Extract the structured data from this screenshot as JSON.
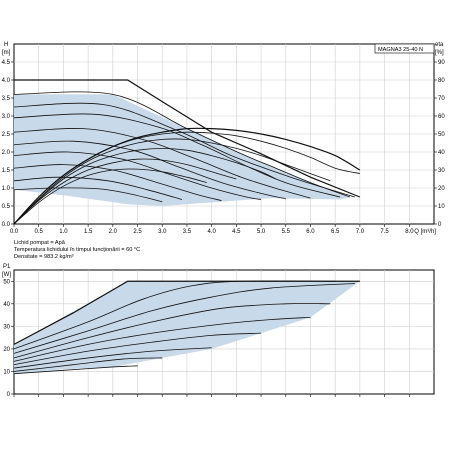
{
  "model_label": "MAGNA3 25-40 N",
  "fluid_notes": [
    "Lichid pompat = Apă",
    "Temperatura lichidului în timpul funcționării = 60 °C",
    "Densitate = 983.2 kg/m³"
  ],
  "colors": {
    "region": "#c8d9ea",
    "line": "#111111",
    "grid": "#cfcfcf"
  },
  "chart_data": [
    {
      "type": "line",
      "role": "head-flow",
      "xlabel": "Q [m³/h]",
      "ylabel_line1": "H",
      "ylabel_line2": "[m]",
      "y2label_line1": "eta",
      "y2label_line2": "[%]",
      "xlim": [
        0,
        8.5
      ],
      "ylim": [
        0,
        5
      ],
      "y2lim": [
        0,
        100
      ],
      "x_ticks": [
        "0.0",
        "0.5",
        "1.0",
        "1.5",
        "2.0",
        "2.5",
        "3.0",
        "3.5",
        "4.0",
        "4.5",
        "5.0",
        "5.5",
        "6.0",
        "6.5",
        "7.0",
        "7.5",
        "8.0"
      ],
      "x_tick_values": [
        0,
        0.5,
        1,
        1.5,
        2,
        2.5,
        3,
        3.5,
        4,
        4.5,
        5,
        5.5,
        6,
        6.5,
        7,
        7.5,
        8
      ],
      "x_unit_label": "Q [m³/h]",
      "y_ticks": [
        "0.0",
        "0.5",
        "1.0",
        "1.5",
        "2.0",
        "2.5",
        "3.0",
        "3.5",
        "4.0",
        "4.5"
      ],
      "y_tick_values": [
        0,
        0.5,
        1,
        1.5,
        2,
        2.5,
        3,
        3.5,
        4,
        4.5
      ],
      "y2_ticks": [
        "0",
        "10",
        "20",
        "30",
        "40",
        "50",
        "60",
        "70",
        "80",
        "90"
      ],
      "y2_tick_values": [
        0,
        10,
        20,
        30,
        40,
        50,
        60,
        70,
        80,
        90
      ],
      "grid": true,
      "max_curve": [
        [
          0,
          4.0
        ],
        [
          2.3,
          4.0
        ],
        [
          3.0,
          3.4
        ],
        [
          4.0,
          2.55
        ],
        [
          5.0,
          1.95
        ],
        [
          6.0,
          1.3
        ],
        [
          7.0,
          0.75
        ]
      ],
      "operating_region": [
        [
          0,
          3.6
        ],
        [
          2.0,
          3.6
        ],
        [
          3.5,
          2.65
        ],
        [
          4.6,
          1.95
        ],
        [
          5.3,
          1.55
        ],
        [
          6.0,
          1.15
        ],
        [
          6.8,
          0.75
        ],
        [
          6.6,
          0.68
        ],
        [
          5.2,
          0.72
        ],
        [
          4.0,
          0.6
        ],
        [
          3.0,
          0.5
        ],
        [
          2.3,
          0.55
        ],
        [
          1.0,
          0.8
        ],
        [
          0,
          0.95
        ]
      ],
      "pressure_curves": [
        [
          [
            0,
            3.6
          ],
          [
            2.0,
            3.6
          ],
          [
            3.5,
            2.65
          ],
          [
            4.6,
            1.95
          ],
          [
            5.3,
            1.55
          ],
          [
            6.0,
            1.15
          ],
          [
            6.8,
            0.75
          ]
        ],
        [
          [
            0,
            3.25
          ],
          [
            1.8,
            3.32
          ],
          [
            3.3,
            2.6
          ],
          [
            4.4,
            1.9
          ],
          [
            5.6,
            1.3
          ],
          [
            6.9,
            0.75
          ]
        ],
        [
          [
            0,
            2.95
          ],
          [
            1.6,
            3.05
          ],
          [
            2.9,
            2.7
          ],
          [
            3.8,
            2.2
          ],
          [
            4.8,
            1.55
          ],
          [
            5.6,
            1.1
          ],
          [
            6.6,
            0.75
          ]
        ],
        [
          [
            0,
            2.55
          ],
          [
            1.4,
            2.65
          ],
          [
            2.6,
            2.35
          ],
          [
            3.6,
            1.85
          ],
          [
            4.6,
            1.3
          ],
          [
            5.4,
            0.95
          ],
          [
            6.0,
            0.72
          ]
        ],
        [
          [
            0,
            2.2
          ],
          [
            1.2,
            2.3
          ],
          [
            2.4,
            2.05
          ],
          [
            3.3,
            1.6
          ],
          [
            4.2,
            1.15
          ],
          [
            5.0,
            0.85
          ],
          [
            5.5,
            0.7
          ]
        ],
        [
          [
            0,
            1.9
          ],
          [
            1.1,
            2.0
          ],
          [
            2.2,
            1.8
          ],
          [
            3.1,
            1.4
          ],
          [
            4.0,
            1.0
          ],
          [
            4.7,
            0.75
          ],
          [
            5.0,
            0.68
          ]
        ],
        [
          [
            0,
            1.55
          ],
          [
            1.0,
            1.65
          ],
          [
            2.0,
            1.5
          ],
          [
            2.9,
            1.15
          ],
          [
            3.7,
            0.82
          ],
          [
            4.2,
            0.65
          ]
        ],
        [
          [
            0,
            1.2
          ],
          [
            0.9,
            1.3
          ],
          [
            1.9,
            1.2
          ],
          [
            2.7,
            0.95
          ],
          [
            3.4,
            0.68
          ]
        ],
        [
          [
            0,
            0.95
          ],
          [
            0.8,
            1.0
          ],
          [
            1.7,
            0.98
          ],
          [
            2.3,
            0.85
          ],
          [
            3.0,
            0.62
          ]
        ]
      ],
      "efficiency_curves": [
        [
          [
            0,
            0
          ],
          [
            0.5,
            15
          ],
          [
            1.0,
            27
          ],
          [
            1.5,
            36
          ],
          [
            2.0,
            43
          ],
          [
            2.5,
            48
          ],
          [
            3.0,
            51
          ],
          [
            3.5,
            53
          ],
          [
            4.0,
            53
          ],
          [
            4.5,
            52
          ],
          [
            5.0,
            50
          ],
          [
            5.5,
            47
          ],
          [
            6.0,
            43
          ],
          [
            6.5,
            38
          ],
          [
            7.0,
            30
          ]
        ],
        [
          [
            0,
            0
          ],
          [
            0.5,
            15
          ],
          [
            1.0,
            27
          ],
          [
            1.5,
            36
          ],
          [
            2.0,
            43
          ],
          [
            2.5,
            47.5
          ],
          [
            3.0,
            50
          ],
          [
            3.5,
            51
          ],
          [
            4.0,
            50.5
          ],
          [
            4.5,
            49
          ],
          [
            5.0,
            46
          ],
          [
            5.5,
            42
          ],
          [
            6.0,
            37
          ],
          [
            6.5,
            31
          ],
          [
            7.0,
            28
          ]
        ],
        [
          [
            0,
            0
          ],
          [
            0.5,
            14
          ],
          [
            1.0,
            26
          ],
          [
            1.5,
            35
          ],
          [
            2.0,
            41
          ],
          [
            2.5,
            45
          ],
          [
            3.0,
            47
          ],
          [
            3.5,
            47
          ],
          [
            4.0,
            45
          ],
          [
            4.5,
            42
          ],
          [
            5.0,
            38
          ],
          [
            5.5,
            33
          ],
          [
            6.0,
            28
          ],
          [
            6.4,
            24
          ]
        ],
        [
          [
            0,
            0
          ],
          [
            0.5,
            13.5
          ],
          [
            1.0,
            25
          ],
          [
            1.5,
            33
          ],
          [
            2.0,
            38
          ],
          [
            2.5,
            41
          ],
          [
            3.0,
            42
          ],
          [
            3.5,
            41
          ],
          [
            4.0,
            38
          ],
          [
            4.5,
            34
          ],
          [
            5.0,
            29
          ],
          [
            5.3,
            25
          ]
        ],
        [
          [
            0,
            0
          ],
          [
            0.5,
            13
          ],
          [
            1.0,
            23
          ],
          [
            1.5,
            30
          ],
          [
            2.0,
            34
          ],
          [
            2.5,
            36
          ],
          [
            3.0,
            35.5
          ],
          [
            3.5,
            33
          ],
          [
            4.0,
            29
          ],
          [
            4.5,
            25
          ]
        ],
        [
          [
            0,
            0
          ],
          [
            0.5,
            12
          ],
          [
            1.0,
            21
          ],
          [
            1.5,
            27
          ],
          [
            2.0,
            30
          ],
          [
            2.5,
            30.5
          ],
          [
            3.0,
            29
          ],
          [
            3.5,
            26
          ],
          [
            3.9,
            23
          ]
        ]
      ]
    },
    {
      "type": "line",
      "role": "power-flow",
      "ylabel_line1": "P1",
      "ylabel_line2": "[W]",
      "xlim": [
        0,
        8.5
      ],
      "ylim": [
        0,
        55
      ],
      "y_ticks": [
        "0",
        "10",
        "20",
        "30",
        "40",
        "50"
      ],
      "y_tick_values": [
        0,
        10,
        20,
        30,
        40,
        50
      ],
      "grid": true,
      "operating_region": [
        [
          0,
          22
        ],
        [
          2.3,
          50
        ],
        [
          7.0,
          50
        ],
        [
          6.0,
          34
        ],
        [
          5.0,
          27
        ],
        [
          4.0,
          20
        ],
        [
          3.0,
          16
        ],
        [
          2.0,
          12
        ],
        [
          1.0,
          11
        ],
        [
          0,
          9
        ]
      ],
      "power_curves": [
        [
          [
            0,
            22
          ],
          [
            1.2,
            36
          ],
          [
            2.3,
            50
          ],
          [
            7.0,
            50
          ]
        ],
        [
          [
            0,
            20
          ],
          [
            1.5,
            32
          ],
          [
            2.6,
            42
          ],
          [
            3.6,
            48
          ],
          [
            4.6,
            50
          ],
          [
            6.5,
            50
          ]
        ],
        [
          [
            0,
            18
          ],
          [
            1.5,
            28
          ],
          [
            2.8,
            37
          ],
          [
            4.0,
            43
          ],
          [
            5.2,
            47
          ],
          [
            6.9,
            49
          ]
        ],
        [
          [
            0,
            16
          ],
          [
            1.5,
            25
          ],
          [
            2.8,
            32
          ],
          [
            4.2,
            38
          ],
          [
            5.5,
            40
          ],
          [
            6.4,
            40
          ]
        ],
        [
          [
            0,
            14.5
          ],
          [
            1.5,
            22
          ],
          [
            2.8,
            27
          ],
          [
            4.2,
            31
          ],
          [
            5.2,
            33
          ],
          [
            6.0,
            34
          ]
        ],
        [
          [
            0,
            13
          ],
          [
            1.5,
            19
          ],
          [
            2.8,
            23
          ],
          [
            4.0,
            26
          ],
          [
            5.0,
            27
          ]
        ],
        [
          [
            0,
            11.5
          ],
          [
            1.5,
            16
          ],
          [
            2.8,
            19
          ],
          [
            4.0,
            20.5
          ]
        ],
        [
          [
            0,
            10
          ],
          [
            1.2,
            13
          ],
          [
            2.2,
            15.5
          ],
          [
            3.0,
            16
          ]
        ],
        [
          [
            0,
            9
          ],
          [
            1.0,
            10.5
          ],
          [
            2.0,
            12
          ],
          [
            2.5,
            12.5
          ]
        ]
      ]
    }
  ]
}
